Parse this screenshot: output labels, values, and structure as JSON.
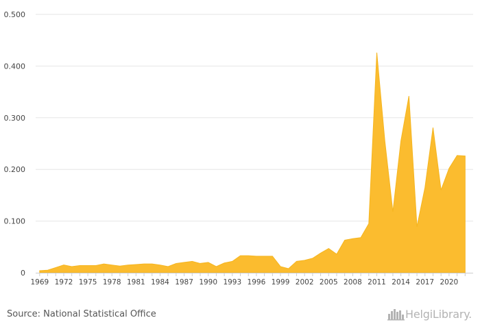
{
  "chart_data": {
    "type": "area",
    "title": "",
    "xlabel": "",
    "ylabel": "",
    "ylim": [
      0,
      0.5
    ],
    "y_ticks": [
      "0",
      "0.100",
      "0.200",
      "0.300",
      "0.400",
      "0.500"
    ],
    "x_tick_labels": [
      "1969",
      "1972",
      "1975",
      "1978",
      "1981",
      "1984",
      "1987",
      "1990",
      "1993",
      "1996",
      "1999",
      "2002",
      "2005",
      "2008",
      "2011",
      "2014",
      "2017",
      "2020"
    ],
    "grid": "horizontal",
    "fill_color": "#fbbc2f",
    "x": [
      1969,
      1970,
      1971,
      1972,
      1973,
      1974,
      1975,
      1976,
      1977,
      1978,
      1979,
      1980,
      1981,
      1982,
      1983,
      1984,
      1985,
      1986,
      1987,
      1988,
      1989,
      1990,
      1991,
      1992,
      1993,
      1994,
      1995,
      1996,
      1997,
      1998,
      1999,
      2000,
      2001,
      2002,
      2003,
      2004,
      2005,
      2006,
      2007,
      2008,
      2009,
      2010,
      2011,
      2012,
      2013,
      2014,
      2015,
      2016,
      2017,
      2018,
      2019,
      2020,
      2021,
      2022
    ],
    "values": [
      0.004,
      0.005,
      0.01,
      0.015,
      0.012,
      0.014,
      0.014,
      0.014,
      0.017,
      0.015,
      0.013,
      0.015,
      0.016,
      0.017,
      0.017,
      0.015,
      0.012,
      0.018,
      0.02,
      0.022,
      0.018,
      0.02,
      0.012,
      0.019,
      0.022,
      0.033,
      0.033,
      0.032,
      0.032,
      0.032,
      0.012,
      0.008,
      0.022,
      0.024,
      0.028,
      0.038,
      0.047,
      0.036,
      0.063,
      0.066,
      0.068,
      0.095,
      0.426,
      0.255,
      0.118,
      0.255,
      0.342,
      0.089,
      0.165,
      0.281,
      0.16,
      0.202,
      0.227,
      0.226
    ]
  },
  "footer": {
    "source": "Source: National Statistical Office",
    "brand": "HelgiLibrary.",
    "logo_icon": "city-skyline-icon"
  }
}
